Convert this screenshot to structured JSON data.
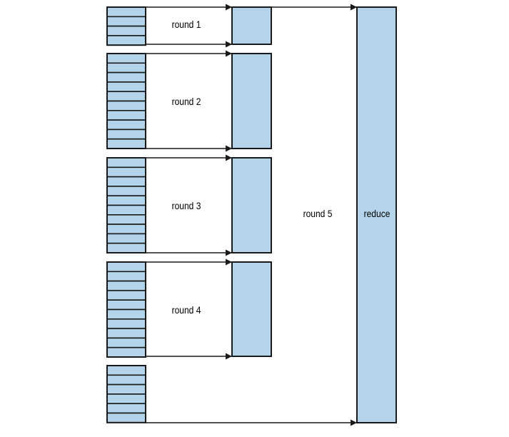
{
  "labels": {
    "round1": "round 1",
    "round2": "round 2",
    "round3": "round 3",
    "round4": "round 4",
    "round5": "round 5",
    "reduce": "reduce"
  },
  "colors": {
    "fill": "#b3d4ea",
    "stroke": "#1a1a1a",
    "background": "#ffffff"
  },
  "stacks": [
    {
      "name": "stack-1",
      "segments": 4
    },
    {
      "name": "stack-2",
      "segments": 10
    },
    {
      "name": "stack-3",
      "segments": 10
    },
    {
      "name": "stack-4",
      "segments": 10
    },
    {
      "name": "stack-5",
      "segments": 6
    }
  ]
}
